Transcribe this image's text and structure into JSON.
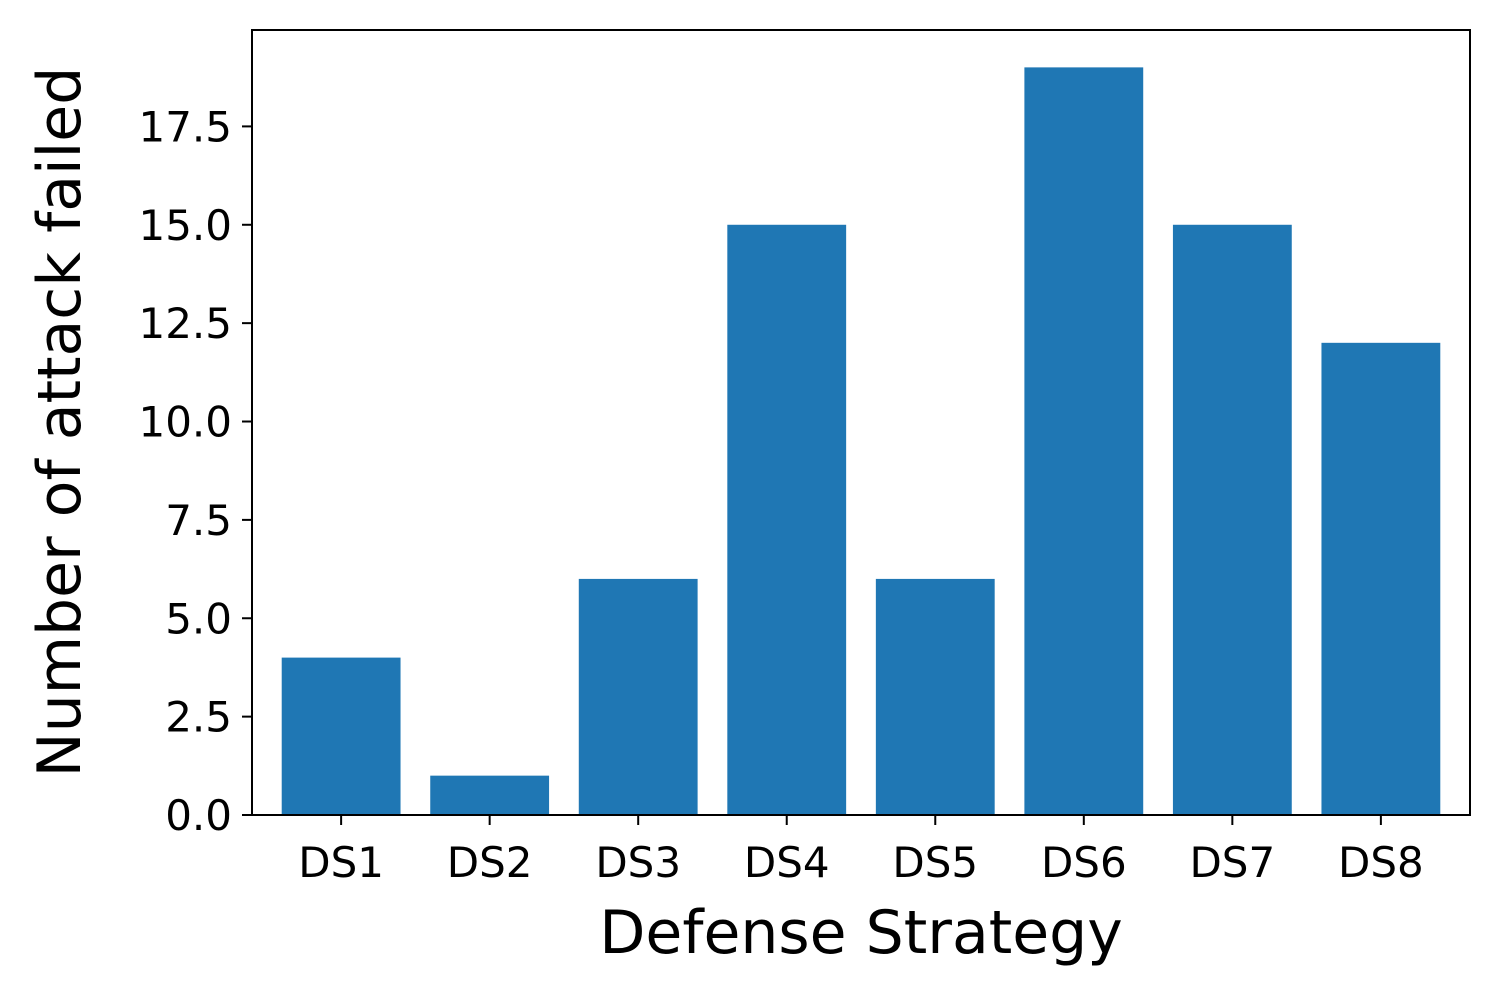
{
  "chart_data": {
    "type": "bar",
    "title": "",
    "xlabel": "Defense Strategy",
    "ylabel": "Number of attack failed",
    "categories": [
      "DS1",
      "DS2",
      "DS3",
      "DS4",
      "DS5",
      "DS6",
      "DS7",
      "DS8"
    ],
    "values": [
      4,
      1,
      6,
      15,
      6,
      19,
      15,
      12
    ],
    "ylim": [
      0,
      19.95
    ],
    "yticks": [
      0,
      2.5,
      5,
      7.5,
      10,
      12.5,
      15,
      17.5
    ],
    "ytick_labels": [
      "0.0",
      "2.5",
      "5.0",
      "7.5",
      "10.0",
      "12.5",
      "15.0",
      "17.5"
    ],
    "bar_color": "#1f77b4",
    "grid": false,
    "legend": "none"
  }
}
